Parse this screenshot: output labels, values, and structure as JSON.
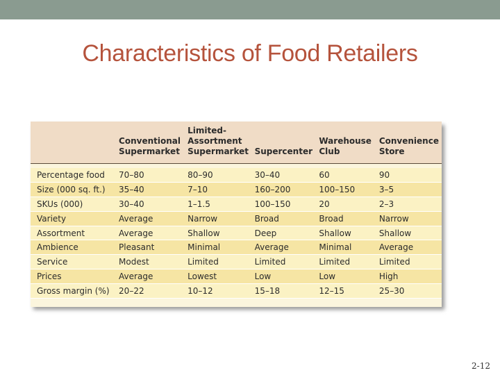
{
  "slide": {
    "title": "Characteristics of Food Retailers",
    "number": "2-12"
  },
  "table": {
    "columns": [
      "",
      "Conventional\nSupermarket",
      "Limited-\nAssortment\nSupermarket",
      "Supercenter",
      "Warehouse\nClub",
      "Convenience\nStore"
    ],
    "rows": [
      [
        "Percentage food",
        "70–80",
        "80–90",
        "30–40",
        "60",
        "90"
      ],
      [
        "Size (000 sq. ft.)",
        "35–40",
        "7–10",
        "160–200",
        "100–150",
        "3–5"
      ],
      [
        "SKUs (000)",
        "30–40",
        "1–1.5",
        "100–150",
        "20",
        "2–3"
      ],
      [
        "Variety",
        "Average",
        "Narrow",
        "Broad",
        "Broad",
        "Narrow"
      ],
      [
        "Assortment",
        "Average",
        "Shallow",
        "Deep",
        "Shallow",
        "Shallow"
      ],
      [
        "Ambience",
        "Pleasant",
        "Minimal",
        "Average",
        "Minimal",
        "Average"
      ],
      [
        "Service",
        "Modest",
        "Limited",
        "Limited",
        "Limited",
        "Limited"
      ],
      [
        "Prices",
        "Average",
        "Lowest",
        "Low",
        "Low",
        "High"
      ],
      [
        "Gross margin (%)",
        "20–22",
        "10–12",
        "15–18",
        "12–15",
        "25–30"
      ]
    ]
  },
  "colors": {
    "topbar": "#8a9b90",
    "title": "#b5533c",
    "header_bg": "#f0dcc6",
    "row_light": "#fbf2c4",
    "row_dark": "#f6e5a4"
  }
}
